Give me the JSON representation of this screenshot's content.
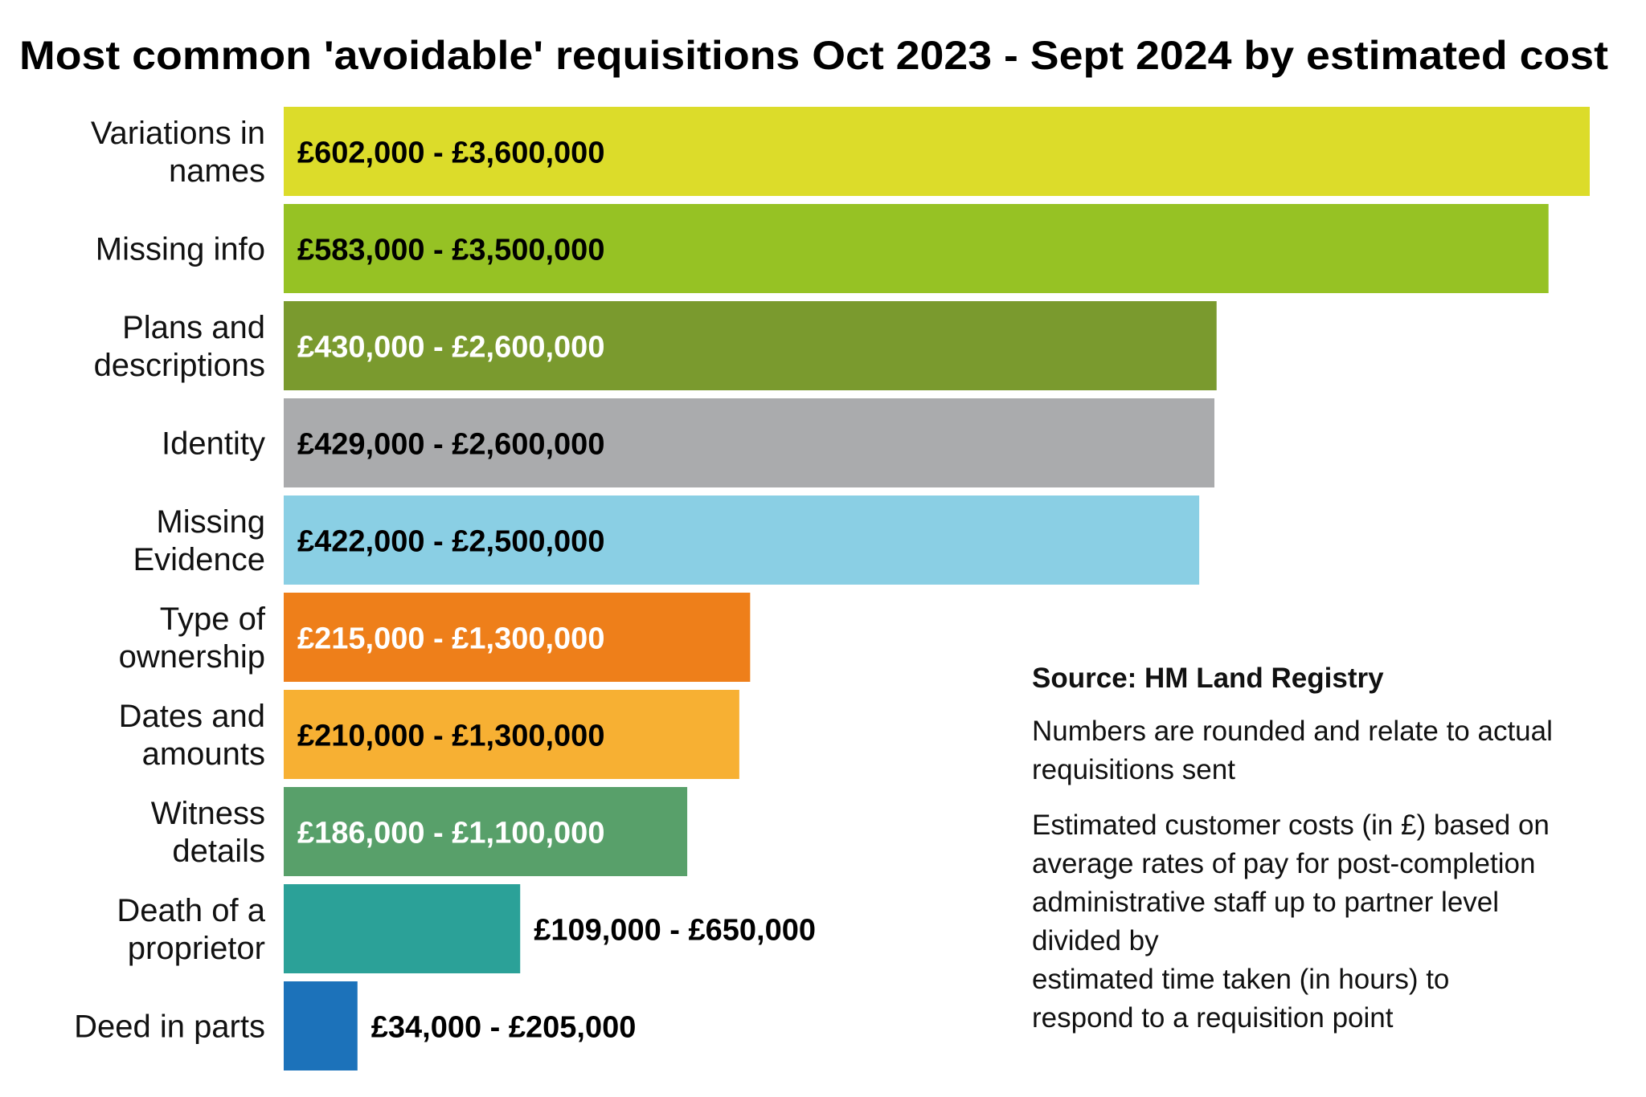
{
  "chart_data": {
    "type": "bar",
    "orientation": "horizontal",
    "title": "Most common 'avoidable' requisitions Oct 2023 - Sept 2024 by estimated cost",
    "categories": [
      [
        "Variations in",
        "names"
      ],
      [
        "Missing info"
      ],
      [
        "Plans and",
        "descriptions"
      ],
      [
        "Identity"
      ],
      [
        "Missing",
        "Evidence"
      ],
      [
        "Type of",
        "ownership"
      ],
      [
        "Dates and",
        "amounts"
      ],
      [
        "Witness",
        "details"
      ],
      [
        "Death of a",
        "proprietor"
      ],
      [
        "Deed in parts"
      ]
    ],
    "values_low": [
      602000,
      583000,
      430000,
      429000,
      422000,
      215000,
      210000,
      186000,
      109000,
      34000
    ],
    "values_high": [
      3600000,
      3500000,
      2600000,
      2600000,
      2500000,
      1300000,
      1300000,
      1100000,
      650000,
      205000
    ],
    "data_labels": [
      "£602,000 - £3,600,000",
      "£583,000 - £3,500,000",
      "£430,000 - £2,600,000",
      "£429,000 - £2,600,000",
      "£422,000 - £2,500,000",
      "£215,000 - £1,300,000",
      "£210,000 - £1,300,000",
      "£186,000 - £1,100,000",
      "£109,000 - £650,000",
      "£34,000 - £205,000"
    ],
    "colors": [
      "#dcdc2a",
      "#96c224",
      "#7a9a2e",
      "#aaabad",
      "#8acfe4",
      "#ee7f1a",
      "#f7b033",
      "#58a06a",
      "#2ba198",
      "#1c72ba"
    ],
    "label_colors": [
      "#000000",
      "#000000",
      "#ffffff",
      "#000000",
      "#000000",
      "#ffffff",
      "#000000",
      "#ffffff",
      "#000000",
      "#000000"
    ],
    "xlabel": "",
    "ylabel": "",
    "grid": false
  },
  "notes": {
    "source": "Source: HM Land Registry",
    "rounding": [
      "Numbers are rounded and relate to actual",
      "requisitions sent"
    ],
    "method": [
      "Estimated customer costs (in £) based on",
      "average rates of pay for post-completion",
      "administrative staff up to partner level",
      "divided by",
      "estimated time taken (in hours) to",
      "respond to a requisition point"
    ]
  }
}
